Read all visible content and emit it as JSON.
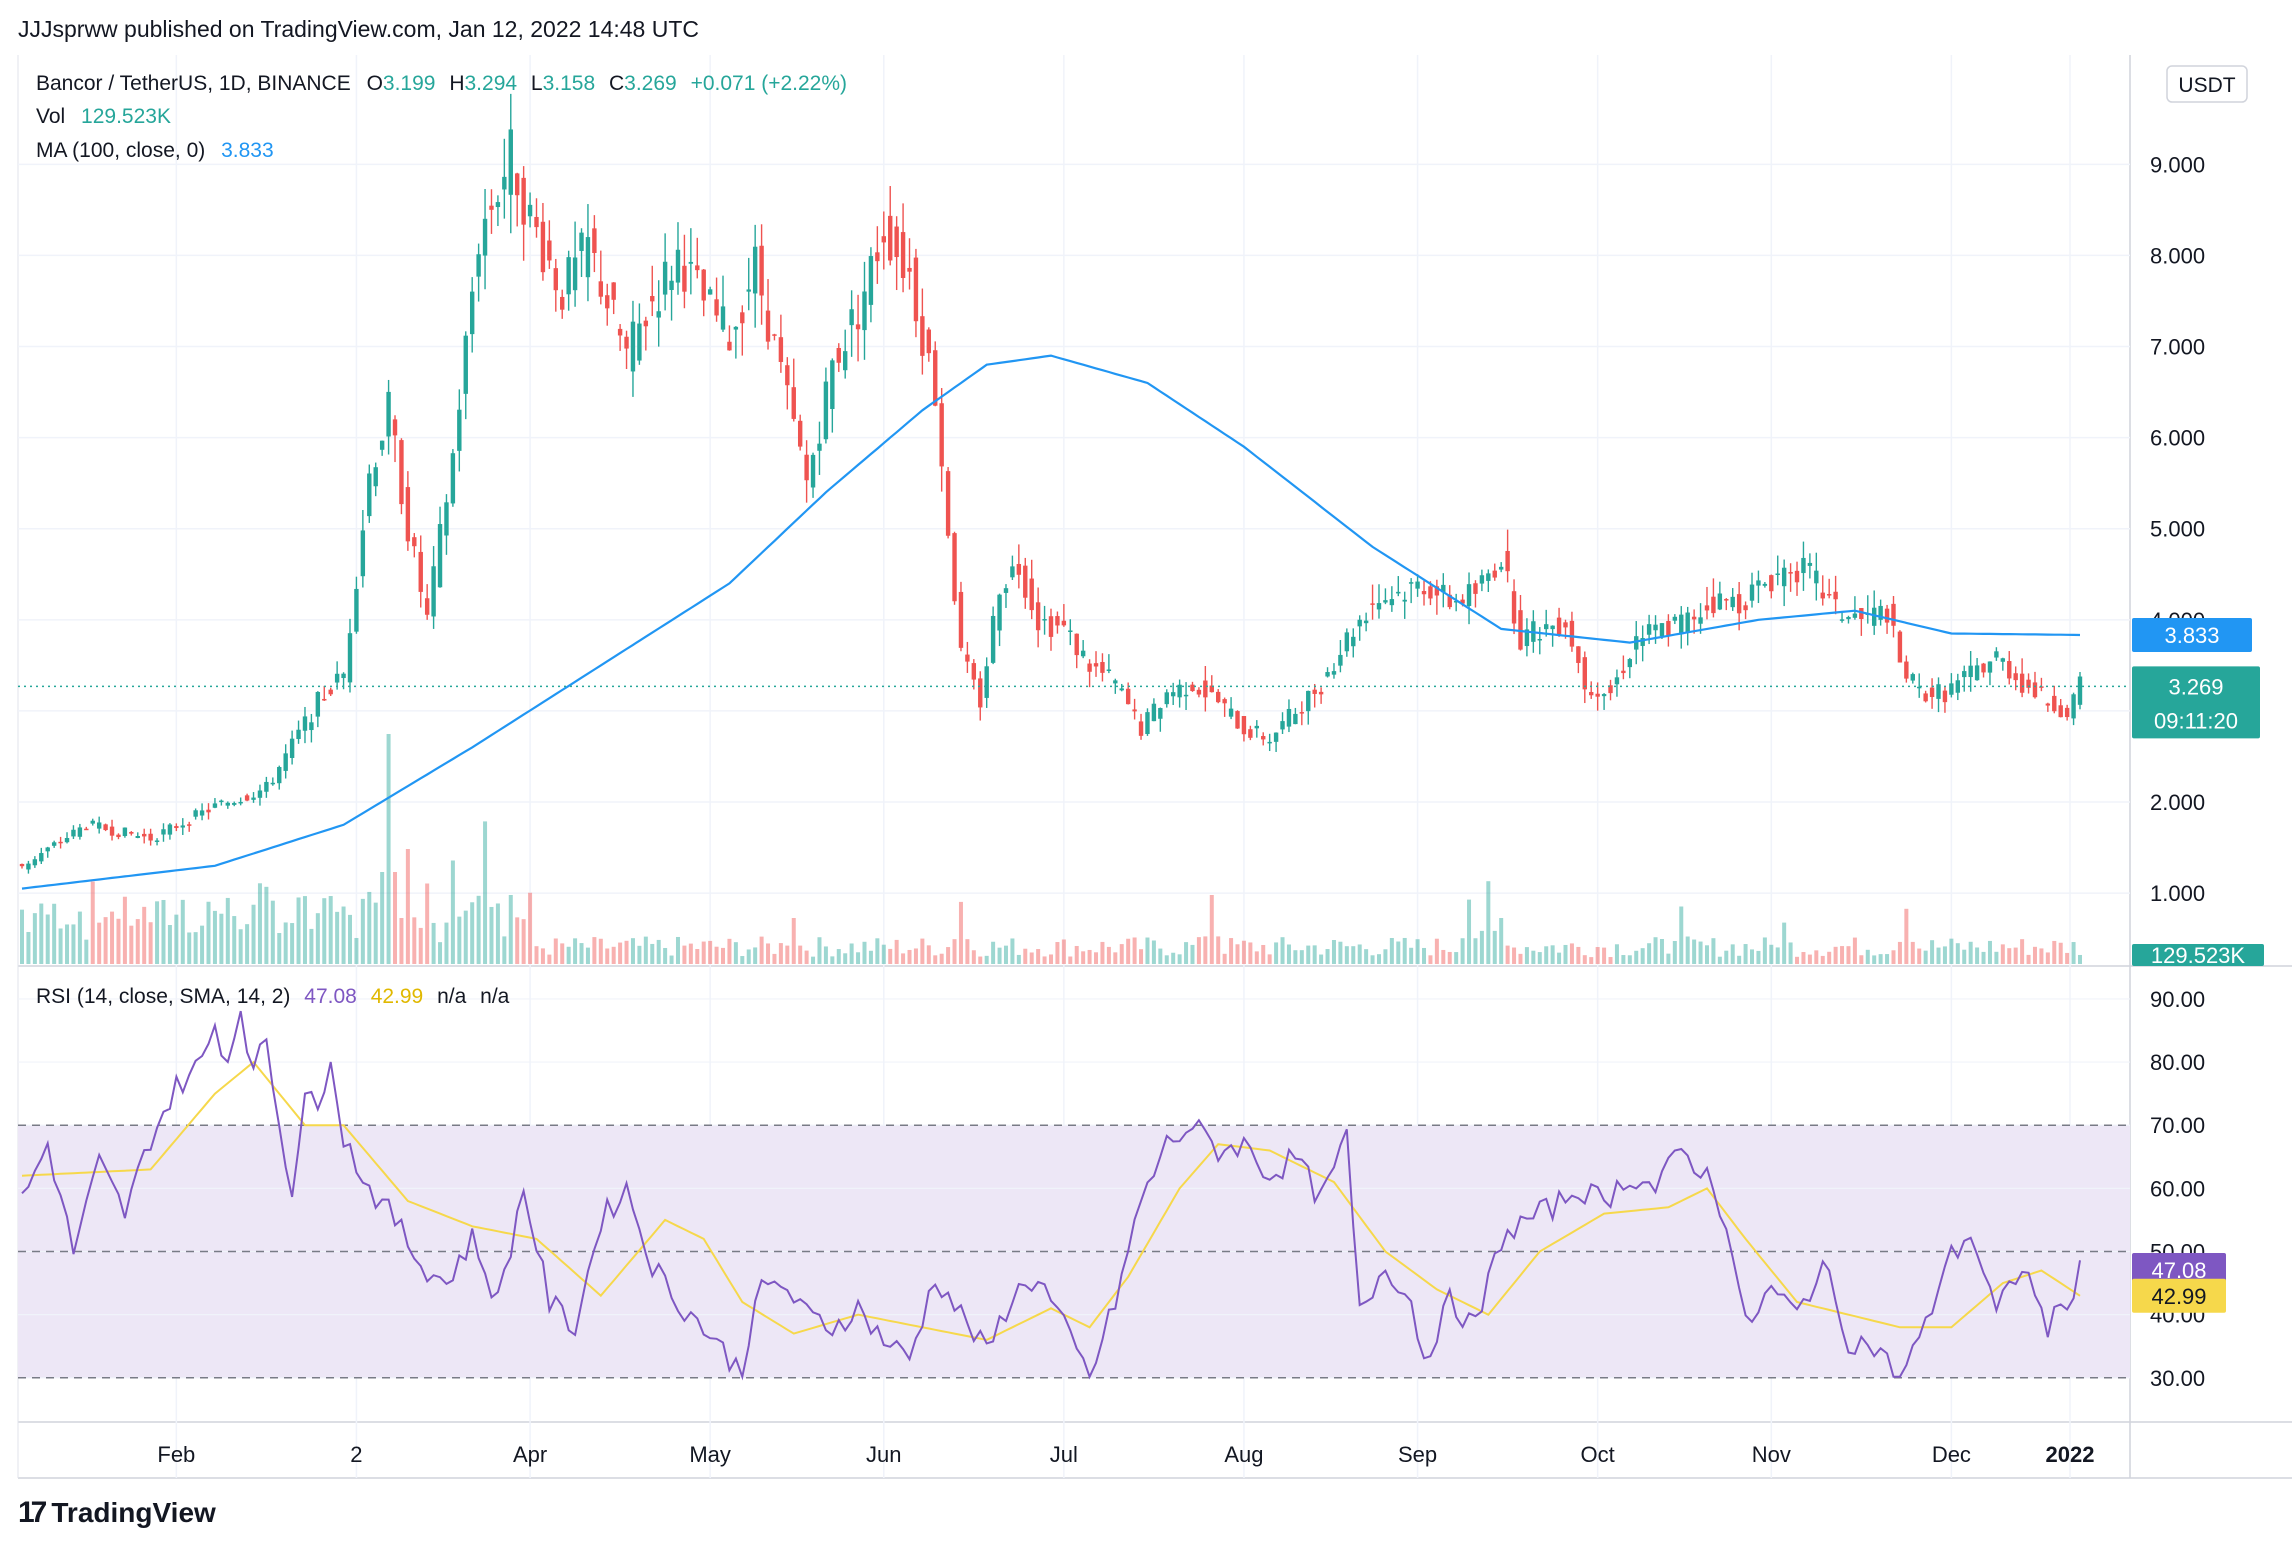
{
  "header": {
    "publisher_line": "JJJsprww published on TradingView.com, Jan 12, 2022 14:48 UTC"
  },
  "legend": {
    "symbol": "Bancor / TetherUS, 1D, BINANCE",
    "o_label": "O",
    "o": "3.199",
    "h_label": "H",
    "h": "3.294",
    "l_label": "L",
    "l": "3.158",
    "c_label": "C",
    "c": "3.269",
    "change": "+0.071 (+2.22%)",
    "vol_label": "Vol",
    "vol": "129.523K",
    "ma_label": "MA (100, close, 0)",
    "ma": "3.833",
    "rsi_label": "RSI (14, close, SMA, 14, 2)",
    "rsi": "47.08",
    "rsi_sma": "42.99",
    "na1": "n/a",
    "na2": "n/a"
  },
  "badges": {
    "currency": "USDT",
    "ma": "3.833",
    "price": "3.269",
    "countdown": "09:11:20",
    "volume": "129.523K",
    "rsi": "47.08",
    "rsi_sma": "42.99"
  },
  "branding": {
    "logo_text": "TradingView"
  },
  "colors": {
    "up": "#26a69a",
    "down": "#ef5350",
    "ma": "#2196f3",
    "rsi": "#7e57c2",
    "rsi_sma": "#f6d84b",
    "rsi_band": "#ede7f6"
  },
  "chart_data": [
    {
      "type": "candlestick",
      "title": "Bancor / TetherUS, 1D, BINANCE",
      "x_ticks": [
        "Feb",
        "2",
        "Apr",
        "May",
        "Jun",
        "Jul",
        "Aug",
        "Sep",
        "Oct",
        "Nov",
        "Dec",
        "2022"
      ],
      "y_ticks": [
        "1.000",
        "2.000",
        "3.000",
        "4.000",
        "5.000",
        "6.000",
        "7.000",
        "8.000",
        "9.000"
      ],
      "ylim": [
        0.2,
        10.2
      ],
      "anchors_close": [
        [
          0,
          1.3
        ],
        [
          10,
          1.75
        ],
        [
          20,
          1.6
        ],
        [
          30,
          1.95
        ],
        [
          38,
          2.15
        ],
        [
          46,
          3.1
        ],
        [
          50,
          3.4
        ],
        [
          54,
          5.6
        ],
        [
          57,
          6.3
        ],
        [
          60,
          5.0
        ],
        [
          63,
          4.0
        ],
        [
          67,
          5.8
        ],
        [
          71,
          8.2
        ],
        [
          76,
          9.1
        ],
        [
          79,
          8.4
        ],
        [
          84,
          7.6
        ],
        [
          88,
          8.1
        ],
        [
          94,
          6.9
        ],
        [
          98,
          7.5
        ],
        [
          102,
          8.0
        ],
        [
          106,
          7.5
        ],
        [
          110,
          7.1
        ],
        [
          114,
          7.9
        ],
        [
          118,
          6.7
        ],
        [
          122,
          5.5
        ],
        [
          126,
          6.8
        ],
        [
          130,
          7.4
        ],
        [
          134,
          8.3
        ],
        [
          138,
          7.8
        ],
        [
          142,
          6.5
        ],
        [
          144,
          5.0
        ],
        [
          146,
          3.6
        ],
        [
          149,
          3.1
        ],
        [
          152,
          4.4
        ],
        [
          155,
          4.6
        ],
        [
          158,
          4.0
        ],
        [
          162,
          3.9
        ],
        [
          166,
          3.5
        ],
        [
          170,
          3.3
        ],
        [
          174,
          2.8
        ],
        [
          178,
          3.2
        ],
        [
          182,
          3.3
        ],
        [
          186,
          3.1
        ],
        [
          190,
          2.8
        ],
        [
          194,
          2.7
        ],
        [
          198,
          3.0
        ],
        [
          202,
          3.3
        ],
        [
          206,
          3.8
        ],
        [
          210,
          4.2
        ],
        [
          214,
          4.3
        ],
        [
          218,
          4.4
        ],
        [
          222,
          4.2
        ],
        [
          226,
          4.3
        ],
        [
          230,
          4.7
        ],
        [
          233,
          3.8
        ],
        [
          236,
          3.9
        ],
        [
          240,
          4.0
        ],
        [
          243,
          3.3
        ],
        [
          247,
          3.2
        ],
        [
          251,
          3.8
        ],
        [
          255,
          3.9
        ],
        [
          259,
          4.0
        ],
        [
          263,
          4.2
        ],
        [
          267,
          4.2
        ],
        [
          271,
          4.4
        ],
        [
          275,
          4.6
        ],
        [
          278,
          4.5
        ],
        [
          282,
          4.1
        ],
        [
          286,
          4.0
        ],
        [
          290,
          4.1
        ],
        [
          292,
          3.5
        ],
        [
          295,
          3.2
        ],
        [
          299,
          3.2
        ],
        [
          303,
          3.4
        ],
        [
          307,
          3.6
        ],
        [
          311,
          3.3
        ],
        [
          315,
          3.1
        ],
        [
          318,
          3.0
        ],
        [
          320,
          3.27
        ]
      ],
      "volume_spikes": [
        [
          57,
          1.0
        ],
        [
          60,
          0.5
        ],
        [
          63,
          0.35
        ],
        [
          67,
          0.45
        ],
        [
          72,
          0.62
        ],
        [
          76,
          0.3
        ],
        [
          120,
          0.2
        ],
        [
          146,
          0.27
        ],
        [
          185,
          0.3
        ],
        [
          225,
          0.28
        ],
        [
          228,
          0.36
        ],
        [
          230,
          0.2
        ],
        [
          258,
          0.25
        ],
        [
          274,
          0.18
        ],
        [
          293,
          0.24
        ]
      ],
      "ma_anchors": [
        [
          0,
          1.05
        ],
        [
          30,
          1.3
        ],
        [
          50,
          1.75
        ],
        [
          70,
          2.6
        ],
        [
          90,
          3.5
        ],
        [
          110,
          4.4
        ],
        [
          125,
          5.4
        ],
        [
          140,
          6.3
        ],
        [
          150,
          6.8
        ],
        [
          160,
          6.9
        ],
        [
          175,
          6.6
        ],
        [
          190,
          5.9
        ],
        [
          210,
          4.8
        ],
        [
          230,
          3.9
        ],
        [
          250,
          3.75
        ],
        [
          270,
          4.0
        ],
        [
          285,
          4.1
        ],
        [
          300,
          3.85
        ],
        [
          321,
          3.833
        ]
      ]
    },
    {
      "type": "line",
      "title": "RSI (14, close, SMA, 14, 2)",
      "y_ticks": [
        "30.00",
        "40.00",
        "50.00",
        "60.00",
        "70.00",
        "80.00",
        "90.00"
      ],
      "ylim": [
        23,
        93
      ],
      "bands": {
        "upper": 70,
        "middle": 50,
        "lower": 30
      },
      "rsi_anchors": [
        [
          0,
          58
        ],
        [
          4,
          67
        ],
        [
          8,
          50
        ],
        [
          12,
          64
        ],
        [
          16,
          56
        ],
        [
          20,
          68
        ],
        [
          24,
          76
        ],
        [
          28,
          80
        ],
        [
          30,
          86
        ],
        [
          32,
          80
        ],
        [
          34,
          89
        ],
        [
          36,
          78
        ],
        [
          38,
          84
        ],
        [
          40,
          70
        ],
        [
          42,
          60
        ],
        [
          44,
          75
        ],
        [
          46,
          72
        ],
        [
          48,
          82
        ],
        [
          50,
          68
        ],
        [
          54,
          60
        ],
        [
          58,
          55
        ],
        [
          62,
          48
        ],
        [
          66,
          45
        ],
        [
          70,
          52
        ],
        [
          74,
          42
        ],
        [
          78,
          60
        ],
        [
          82,
          42
        ],
        [
          86,
          38
        ],
        [
          90,
          55
        ],
        [
          94,
          60
        ],
        [
          98,
          48
        ],
        [
          102,
          42
        ],
        [
          106,
          38
        ],
        [
          110,
          33
        ],
        [
          112,
          31
        ],
        [
          114,
          43
        ],
        [
          118,
          45
        ],
        [
          122,
          40
        ],
        [
          126,
          38
        ],
        [
          130,
          41
        ],
        [
          134,
          36
        ],
        [
          138,
          33
        ],
        [
          142,
          46
        ],
        [
          146,
          40
        ],
        [
          150,
          34
        ],
        [
          154,
          43
        ],
        [
          158,
          46
        ],
        [
          162,
          38
        ],
        [
          166,
          30
        ],
        [
          170,
          42
        ],
        [
          174,
          58
        ],
        [
          178,
          67
        ],
        [
          182,
          70
        ],
        [
          186,
          66
        ],
        [
          190,
          67
        ],
        [
          194,
          62
        ],
        [
          198,
          65
        ],
        [
          202,
          58
        ],
        [
          206,
          68
        ],
        [
          208,
          40
        ],
        [
          212,
          48
        ],
        [
          216,
          42
        ],
        [
          218,
          33
        ],
        [
          222,
          42
        ],
        [
          226,
          38
        ],
        [
          230,
          52
        ],
        [
          234,
          55
        ],
        [
          238,
          57
        ],
        [
          242,
          60
        ],
        [
          246,
          58
        ],
        [
          250,
          62
        ],
        [
          254,
          60
        ],
        [
          258,
          66
        ],
        [
          262,
          62
        ],
        [
          265,
          55
        ],
        [
          268,
          38
        ],
        [
          272,
          44
        ],
        [
          276,
          40
        ],
        [
          280,
          48
        ],
        [
          284,
          36
        ],
        [
          288,
          35
        ],
        [
          292,
          30
        ],
        [
          296,
          38
        ],
        [
          299,
          48
        ],
        [
          303,
          53
        ],
        [
          307,
          40
        ],
        [
          311,
          48
        ],
        [
          315,
          38
        ],
        [
          318,
          42
        ],
        [
          320,
          47.08
        ]
      ],
      "sma_anchors": [
        [
          0,
          62
        ],
        [
          20,
          63
        ],
        [
          30,
          75
        ],
        [
          36,
          80
        ],
        [
          44,
          70
        ],
        [
          50,
          70
        ],
        [
          60,
          58
        ],
        [
          70,
          54
        ],
        [
          80,
          52
        ],
        [
          90,
          43
        ],
        [
          100,
          55
        ],
        [
          106,
          52
        ],
        [
          112,
          42
        ],
        [
          120,
          37
        ],
        [
          130,
          40
        ],
        [
          140,
          38
        ],
        [
          150,
          36
        ],
        [
          160,
          41
        ],
        [
          166,
          38
        ],
        [
          172,
          46
        ],
        [
          180,
          60
        ],
        [
          186,
          67
        ],
        [
          194,
          66
        ],
        [
          204,
          61
        ],
        [
          212,
          50
        ],
        [
          220,
          44
        ],
        [
          228,
          40
        ],
        [
          236,
          50
        ],
        [
          246,
          56
        ],
        [
          256,
          57
        ],
        [
          262,
          60
        ],
        [
          268,
          52
        ],
        [
          276,
          42
        ],
        [
          284,
          40
        ],
        [
          292,
          38
        ],
        [
          300,
          38
        ],
        [
          308,
          45
        ],
        [
          314,
          47
        ],
        [
          320,
          42.99
        ]
      ]
    }
  ]
}
